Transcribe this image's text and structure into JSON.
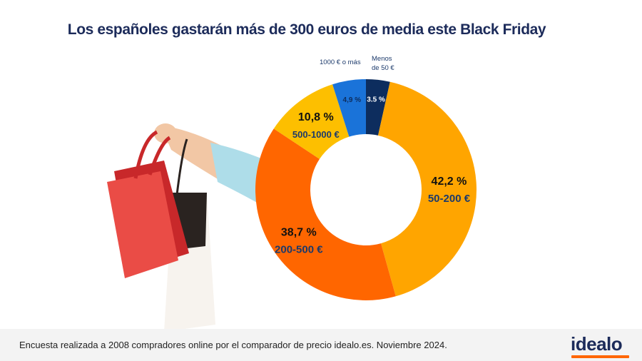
{
  "title": "Los españoles gastarán más de 300 euros de media este Black Friday",
  "footer": {
    "text": "Encuesta realizada a 2008 compradores online por el comparador de precio idealo.es. Noviembre 2024.",
    "logo": "idealo"
  },
  "colors": {
    "title": "#1c2b5a",
    "accent_orange": "#ff6600",
    "footer_bg": "#f3f3f3"
  },
  "chart_data": {
    "type": "pie",
    "donut": true,
    "title": "",
    "slices": [
      {
        "label": "Menos de 50 €",
        "value": 3.5,
        "value_text": "3.5 %",
        "color": "#0d2d5e"
      },
      {
        "label": "50-200 €",
        "value": 42.2,
        "value_text": "42,2 %",
        "color": "#ffa500"
      },
      {
        "label": "200-500 €",
        "value": 38.7,
        "value_text": "38,7 %",
        "color": "#ff6600"
      },
      {
        "label": "500-1000 €",
        "value": 10.8,
        "value_text": "10,8 %",
        "color": "#fdbf00"
      },
      {
        "label": "1000 € o más",
        "value": 4.9,
        "value_text": "4,9 %",
        "color": "#1a73d9"
      }
    ],
    "outside_labels": [
      "1000 € o más",
      "Menos",
      "de 50 €"
    ]
  }
}
